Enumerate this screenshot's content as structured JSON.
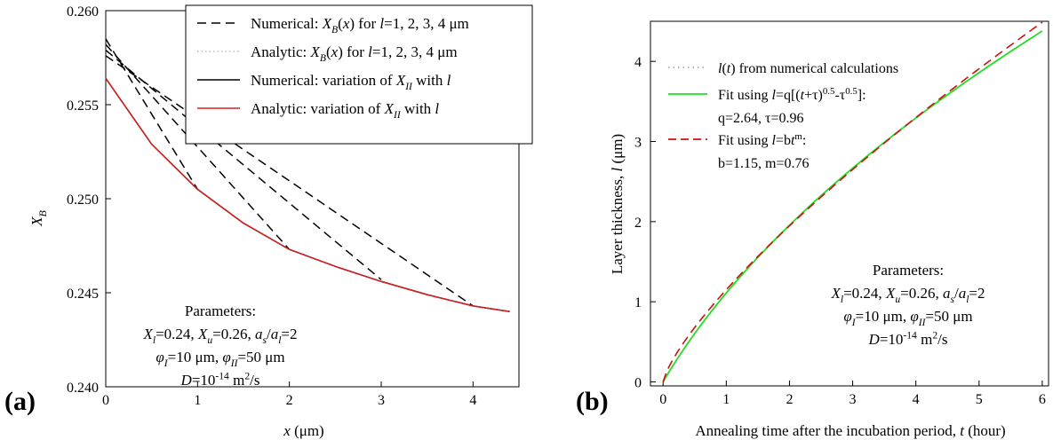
{
  "chart_data": [
    {
      "type": "line",
      "panel_label": "(a)",
      "xlabel": {
        "var": "x",
        "rest": " (μm)"
      },
      "ylabel": {
        "main": "X",
        "sub": "B"
      },
      "xlim": [
        0,
        4.5
      ],
      "ylim": [
        0.24,
        0.26
      ],
      "xticks": [
        0,
        1,
        2,
        3,
        4
      ],
      "yticks": [
        0.24,
        0.245,
        0.25,
        0.255,
        0.26
      ],
      "ytick_labels": [
        "0.240",
        "0.245",
        "0.250",
        "0.255",
        "0.260"
      ],
      "legend": {
        "placement": "top-right",
        "entries": [
          {
            "style": "dashed",
            "color": "#000000",
            "parts": [
              [
                "n",
                "Numerical: "
              ],
              [
                "i",
                "X"
              ],
              [
                "sub",
                "B"
              ],
              [
                "n",
                "("
              ],
              [
                "i",
                "x"
              ],
              [
                "n",
                ") for "
              ],
              [
                "i",
                "l"
              ],
              [
                "n",
                "=1, 2, 3, 4 μm"
              ]
            ]
          },
          {
            "style": "dotted",
            "color": "#bbbbbb",
            "parts": [
              [
                "n",
                "Analytic: "
              ],
              [
                "i",
                "X"
              ],
              [
                "sub",
                "B"
              ],
              [
                "n",
                "("
              ],
              [
                "i",
                "x"
              ],
              [
                "n",
                ") for "
              ],
              [
                "i",
                "l"
              ],
              [
                "n",
                "=1, 2, 3, 4 μm"
              ]
            ]
          },
          {
            "style": "solid",
            "color": "#000000",
            "parts": [
              [
                "n",
                "Numerical: variation of "
              ],
              [
                "i",
                "X"
              ],
              [
                "sub",
                "II"
              ],
              [
                "n",
                " with "
              ],
              [
                "i",
                "l"
              ]
            ]
          },
          {
            "style": "solid",
            "color": "#d42020",
            "parts": [
              [
                "n",
                "Analytic: variation of "
              ],
              [
                "i",
                "X"
              ],
              [
                "sub",
                "II"
              ],
              [
                "n",
                " with "
              ],
              [
                "i",
                "l"
              ]
            ]
          }
        ]
      },
      "series": [
        {
          "style": "dashed",
          "color": "#000000",
          "x": [
            0,
            1
          ],
          "y": [
            0.2585,
            0.2505
          ]
        },
        {
          "style": "dashed",
          "color": "#000000",
          "x": [
            0,
            2
          ],
          "y": [
            0.2582,
            0.2473
          ]
        },
        {
          "style": "dashed",
          "color": "#000000",
          "x": [
            0,
            3
          ],
          "y": [
            0.2579,
            0.2457
          ]
        },
        {
          "style": "dashed",
          "color": "#000000",
          "x": [
            0,
            4
          ],
          "y": [
            0.2576,
            0.2443
          ]
        },
        {
          "style": "solid",
          "color": "#000000",
          "x": [
            0,
            0.5,
            1,
            1.5,
            2,
            2.5,
            3,
            3.5,
            4,
            4.4
          ],
          "y": [
            0.2564,
            0.2529,
            0.2505,
            0.2487,
            0.2473,
            0.2464,
            0.2456,
            0.2449,
            0.2443,
            0.244
          ]
        },
        {
          "style": "solid",
          "color": "#d42020",
          "x": [
            0,
            0.5,
            1,
            1.5,
            2,
            2.5,
            3,
            3.5,
            4,
            4.4
          ],
          "y": [
            0.2564,
            0.2529,
            0.2505,
            0.2487,
            0.2473,
            0.2464,
            0.2456,
            0.2449,
            0.2443,
            0.244
          ]
        }
      ],
      "params_title": "Parameters:",
      "params": [
        [
          [
            "i",
            "X"
          ],
          [
            "sub",
            "l"
          ],
          [
            "n",
            "=0.24, "
          ],
          [
            "i",
            "X"
          ],
          [
            "sub",
            "u"
          ],
          [
            "n",
            "=0.26, "
          ],
          [
            "i",
            "a"
          ],
          [
            "sub",
            "s"
          ],
          [
            "n",
            "/"
          ],
          [
            "i",
            "a"
          ],
          [
            "sub",
            "l"
          ],
          [
            "n",
            "=2"
          ]
        ],
        [
          [
            "i",
            "φ"
          ],
          [
            "sub",
            "I"
          ],
          [
            "n",
            "=10 μm, "
          ],
          [
            "i",
            "φ"
          ],
          [
            "sub",
            "II"
          ],
          [
            "n",
            "=50 μm"
          ]
        ],
        [
          [
            "i",
            "D"
          ],
          [
            "n",
            "=10"
          ],
          [
            "sup",
            "-14"
          ],
          [
            "n",
            " m"
          ],
          [
            "sup",
            "2"
          ],
          [
            "n",
            "/s"
          ]
        ]
      ]
    },
    {
      "type": "line",
      "panel_label": "(b)",
      "xlabel": {
        "main": "Annealing time after the incubation period, ",
        "var": "t",
        "rest": " (hour)"
      },
      "ylabel": {
        "main": "Layer thickness, ",
        "var": "l",
        "rest": " (μm)"
      },
      "xlim": [
        -0.2,
        6.1
      ],
      "ylim": [
        -0.05,
        4.5
      ],
      "xticks": [
        0,
        1,
        2,
        3,
        4,
        5,
        6
      ],
      "yticks": [
        0,
        1,
        2,
        3,
        4
      ],
      "legend": {
        "placement": "top-left",
        "entries": [
          {
            "style": "dotted",
            "color": "#aaaaaa",
            "parts": [
              [
                "i",
                "l"
              ],
              [
                "n",
                "("
              ],
              [
                "i",
                "t"
              ],
              [
                "n",
                ") from numerical calculations"
              ]
            ]
          },
          {
            "style": "solid",
            "color": "#22dd22",
            "parts": [
              [
                "n",
                "Fit using "
              ],
              [
                "i",
                "l"
              ],
              [
                "n",
                "=q[("
              ],
              [
                "i",
                "t"
              ],
              [
                "n",
                "+τ)"
              ],
              [
                "sup",
                "0.5"
              ],
              [
                "n",
                "-τ"
              ],
              [
                "sup",
                "0.5"
              ],
              [
                "n",
                "]:"
              ]
            ],
            "extra": [
              [
                "n",
                "q=2.64, τ=0.96"
              ]
            ]
          },
          {
            "style": "dashed",
            "color": "#cc1111",
            "parts": [
              [
                "n",
                "Fit using "
              ],
              [
                "i",
                "l"
              ],
              [
                "n",
                "=b"
              ],
              [
                "i",
                "t"
              ],
              [
                "sup",
                "m"
              ],
              [
                "n",
                ":"
              ]
            ],
            "extra": [
              [
                "n",
                "b=1.15, m=0.76"
              ]
            ]
          }
        ]
      },
      "fits": {
        "sqrt": {
          "q": 2.64,
          "tau": 0.96
        },
        "power": {
          "b": 1.15,
          "m": 0.76
        }
      },
      "params_title": "Parameters:",
      "params": [
        [
          [
            "i",
            "X"
          ],
          [
            "sub",
            "l"
          ],
          [
            "n",
            "=0.24, "
          ],
          [
            "i",
            "X"
          ],
          [
            "sub",
            "u"
          ],
          [
            "n",
            "=0.26, "
          ],
          [
            "i",
            "a"
          ],
          [
            "sub",
            "s"
          ],
          [
            "n",
            "/"
          ],
          [
            "i",
            "a"
          ],
          [
            "sub",
            "l"
          ],
          [
            "n",
            "=2"
          ]
        ],
        [
          [
            "i",
            "φ"
          ],
          [
            "sub",
            "I"
          ],
          [
            "n",
            "=10 μm, "
          ],
          [
            "i",
            "φ"
          ],
          [
            "sub",
            "II"
          ],
          [
            "n",
            "=50 μm"
          ]
        ],
        [
          [
            "i",
            "D"
          ],
          [
            "n",
            "=10"
          ],
          [
            "sup",
            "-14"
          ],
          [
            "n",
            " m"
          ],
          [
            "sup",
            "2"
          ],
          [
            "n",
            "/s"
          ]
        ]
      ]
    }
  ]
}
